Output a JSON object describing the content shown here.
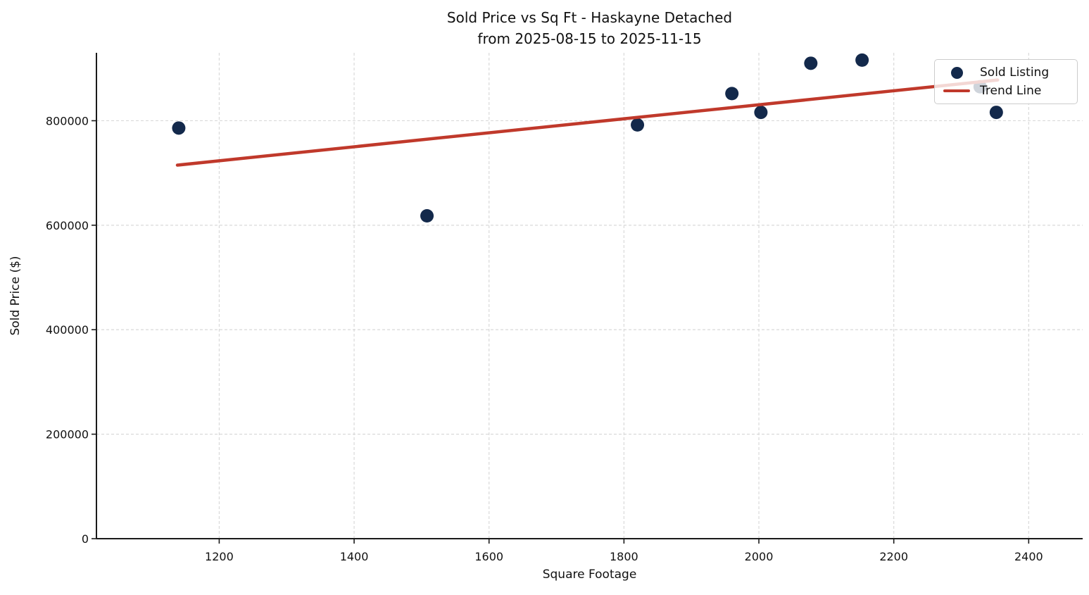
{
  "title": {
    "line1": "Sold Price vs Sq Ft - Haskayne Detached",
    "line2": "from 2025-08-15 to 2025-11-15"
  },
  "chart_data": {
    "type": "scatter",
    "title": "Sold Price vs Sq Ft - Haskayne Detached\nfrom 2025-08-15 to 2025-11-15",
    "xlabel": "Square Footage",
    "ylabel": "Sold Price ($)",
    "xlim": [
      1018,
      2480
    ],
    "ylim": [
      0,
      930000
    ],
    "x_ticks": [
      1200,
      1400,
      1600,
      1800,
      2000,
      2200,
      2400
    ],
    "y_ticks": [
      0,
      200000,
      400000,
      600000,
      800000
    ],
    "grid": true,
    "grid_style": "dashed",
    "legend_position": "upper right",
    "colors": {
      "marker": "#13294b",
      "trend": "#c0392b",
      "gridline": "#d9d9d9",
      "spine": "#1a1a1a",
      "background": "#ffffff"
    },
    "series": [
      {
        "name": "Sold Listing",
        "type": "scatter",
        "color": "#13294b",
        "points": [
          [
            1140,
            786000
          ],
          [
            1508,
            618000
          ],
          [
            1820,
            792000
          ],
          [
            1960,
            852000
          ],
          [
            2003,
            816000
          ],
          [
            2077,
            910000
          ],
          [
            2153,
            916000
          ],
          [
            2328,
            865000
          ],
          [
            2352,
            816000
          ]
        ]
      },
      {
        "name": "Trend Line",
        "type": "line",
        "color": "#c0392b",
        "points": [
          [
            1138,
            715000
          ],
          [
            2354,
            878000
          ]
        ]
      }
    ]
  }
}
